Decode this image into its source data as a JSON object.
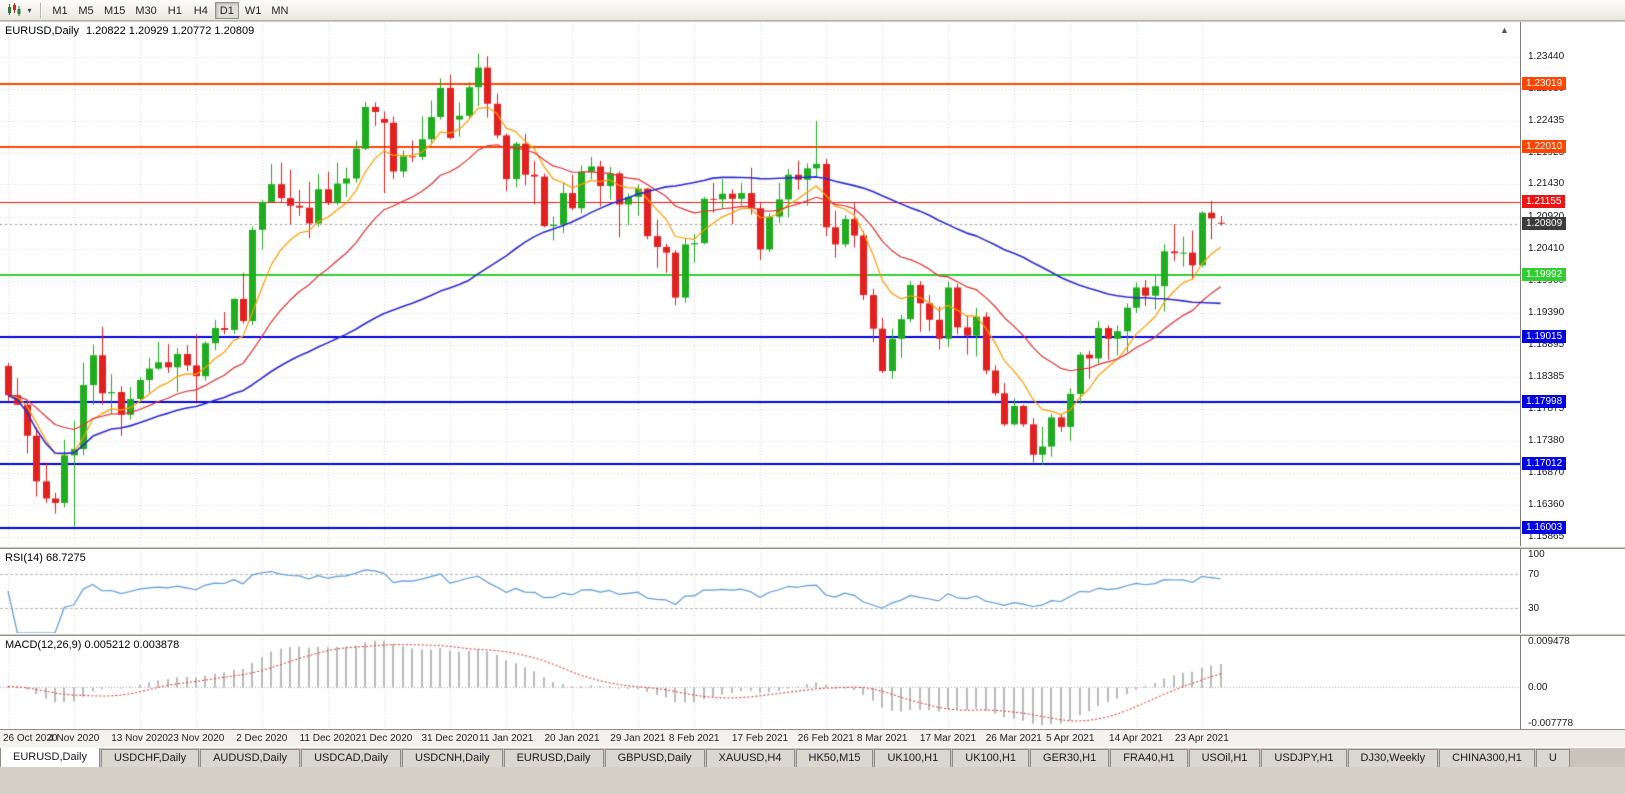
{
  "toolbar": {
    "chart_type_icon": "candlestick-chart-icon",
    "dropdown_icon": "chevron-down-icon",
    "timeframes": [
      {
        "label": "M1"
      },
      {
        "label": "M5"
      },
      {
        "label": "M15"
      },
      {
        "label": "M30"
      },
      {
        "label": "H1"
      },
      {
        "label": "H4"
      },
      {
        "label": "D1",
        "active": true
      },
      {
        "label": "W1"
      },
      {
        "label": "MN"
      }
    ]
  },
  "chart": {
    "symbol_period": "EURUSD,Daily",
    "ohlc_text": "1.20822 1.20929 1.20772 1.20809"
  },
  "chart_data": {
    "type": "candlestick",
    "symbol": "EURUSD",
    "period": "Daily",
    "colors": {
      "bull": "#1fad1f",
      "bear": "#e32020",
      "grid": "#d8d8d8",
      "background": "#ffffff"
    },
    "price_scale": {
      "max": 1.2399,
      "min": 1.1572
    },
    "price_axis": [
      "1.23440",
      "1.22930",
      "1.22435",
      "1.21925",
      "1.21430",
      "1.20920",
      "1.20410",
      "1.19900",
      "1.19390",
      "1.18895",
      "1.18385",
      "1.17875",
      "1.17380",
      "1.16870",
      "1.16360",
      "1.15865"
    ],
    "hlines": [
      {
        "price": 1.23019,
        "label": "1.23019",
        "color": "#ff4500",
        "width": 2
      },
      {
        "price": 1.2201,
        "label": "1.22010",
        "color": "#ff4500",
        "width": 2
      },
      {
        "price": 1.21155,
        "label": "1.21155",
        "color": "#ef1414",
        "width": 1
      },
      {
        "price": 1.19992,
        "label": "1.19992",
        "color": "#32cd32",
        "width": 2
      },
      {
        "price": 1.19015,
        "label": "1.19015",
        "color": "#0000e0",
        "width": 2
      },
      {
        "price": 1.17998,
        "label": "1.17998",
        "color": "#0000e0",
        "width": 2
      },
      {
        "price": 1.17012,
        "label": "1.17012",
        "color": "#0000e0",
        "width": 2
      },
      {
        "price": 1.16003,
        "label": "1.16003",
        "color": "#0000e0",
        "width": 2
      }
    ],
    "current_price": {
      "price": 1.20809,
      "label": "1.20809",
      "color": "#3c3c3c"
    },
    "moving_averages": [
      {
        "name": "fast-ma",
        "method": "ema",
        "period": 8,
        "color": "#ff9c00",
        "width": 1.2
      },
      {
        "name": "mid-ma",
        "method": "ema",
        "period": 20,
        "color": "#e03030",
        "width": 1.2
      },
      {
        "name": "slow-ma",
        "method": "sma",
        "period": 50,
        "color": "#2b2bd0",
        "width": 1.6
      }
    ],
    "date_labels": [
      {
        "label": "26 Oct 2020",
        "i": 0
      },
      {
        "label": "4 Nov 2020",
        "i": 7
      },
      {
        "label": "13 Nov 2020",
        "i": 14
      },
      {
        "label": "23 Nov 2020",
        "i": 20
      },
      {
        "label": "2 Dec 2020",
        "i": 27
      },
      {
        "label": "11 Dec 2020",
        "i": 34
      },
      {
        "label": "21 Dec 2020",
        "i": 40
      },
      {
        "label": "31 Dec 2020",
        "i": 47
      },
      {
        "label": "11 Jan 2021",
        "i": 53
      },
      {
        "label": "20 Jan 2021",
        "i": 60
      },
      {
        "label": "29 Jan 2021",
        "i": 67
      },
      {
        "label": "8 Feb 2021",
        "i": 73
      },
      {
        "label": "17 Feb 2021",
        "i": 80
      },
      {
        "label": "26 Feb 2021",
        "i": 87
      },
      {
        "label": "8 Mar 2021",
        "i": 93
      },
      {
        "label": "17 Mar 2021",
        "i": 100
      },
      {
        "label": "26 Mar 2021",
        "i": 107
      },
      {
        "label": "5 Apr 2021",
        "i": 113
      },
      {
        "label": "14 Apr 2021",
        "i": 120
      },
      {
        "label": "23 Apr 2021",
        "i": 127
      }
    ],
    "candles": [
      [
        1.1856,
        1.1861,
        1.18,
        1.181
      ],
      [
        1.181,
        1.1837,
        1.1794,
        1.1795
      ],
      [
        1.1795,
        1.18,
        1.1718,
        1.1746
      ],
      [
        1.1746,
        1.1759,
        1.165,
        1.1674
      ],
      [
        1.1674,
        1.1704,
        1.164,
        1.1647
      ],
      [
        1.1647,
        1.1656,
        1.1623,
        1.164
      ],
      [
        1.164,
        1.174,
        1.1633,
        1.1715
      ],
      [
        1.1715,
        1.177,
        1.1603,
        1.1725
      ],
      [
        1.1725,
        1.1861,
        1.1715,
        1.1826
      ],
      [
        1.1826,
        1.189,
        1.1795,
        1.1873
      ],
      [
        1.1873,
        1.1918,
        1.1795,
        1.1813
      ],
      [
        1.1813,
        1.1843,
        1.1781,
        1.1815
      ],
      [
        1.1815,
        1.1824,
        1.1746,
        1.1779
      ],
      [
        1.1779,
        1.1823,
        1.1772,
        1.1804
      ],
      [
        1.1804,
        1.1838,
        1.1799,
        1.1834
      ],
      [
        1.1834,
        1.1869,
        1.1814,
        1.1852
      ],
      [
        1.1852,
        1.1894,
        1.185,
        1.1862
      ],
      [
        1.1862,
        1.1891,
        1.1845,
        1.1854
      ],
      [
        1.1854,
        1.1884,
        1.1815,
        1.1875
      ],
      [
        1.1875,
        1.1889,
        1.1848,
        1.1857
      ],
      [
        1.1857,
        1.1906,
        1.18,
        1.184
      ],
      [
        1.184,
        1.1895,
        1.1833,
        1.1892
      ],
      [
        1.1892,
        1.1929,
        1.1881,
        1.1916
      ],
      [
        1.1916,
        1.1941,
        1.1906,
        1.1913
      ],
      [
        1.1913,
        1.1963,
        1.1907,
        1.1962
      ],
      [
        1.1962,
        1.2003,
        1.1923,
        1.1927
      ],
      [
        1.1927,
        1.2076,
        1.1921,
        1.2071
      ],
      [
        1.2071,
        1.2118,
        1.204,
        1.2115
      ],
      [
        1.2115,
        1.2175,
        1.2114,
        1.2143
      ],
      [
        1.2143,
        1.2177,
        1.2115,
        1.2121
      ],
      [
        1.2121,
        1.2166,
        1.2079,
        1.2109
      ],
      [
        1.2109,
        1.2134,
        1.2093,
        1.2106
      ],
      [
        1.2106,
        1.2147,
        1.2058,
        1.2081
      ],
      [
        1.2081,
        1.2159,
        1.2076,
        1.2135
      ],
      [
        1.2135,
        1.2163,
        1.211,
        1.2113
      ],
      [
        1.2113,
        1.2177,
        1.211,
        1.2144
      ],
      [
        1.2144,
        1.2169,
        1.2123,
        1.2152
      ],
      [
        1.2152,
        1.2212,
        1.2145,
        1.2199
      ],
      [
        1.2199,
        1.2273,
        1.2197,
        1.2265
      ],
      [
        1.2265,
        1.2272,
        1.2235,
        1.2257
      ],
      [
        1.2246,
        1.2258,
        1.2129,
        1.224
      ],
      [
        1.224,
        1.225,
        1.2151,
        1.2163
      ],
      [
        1.2163,
        1.2196,
        1.2154,
        1.2187
      ],
      [
        1.2187,
        1.2212,
        1.2178,
        1.2186
      ],
      [
        1.2186,
        1.225,
        1.2181,
        1.2214
      ],
      [
        1.2214,
        1.2275,
        1.2208,
        1.2249
      ],
      [
        1.2249,
        1.231,
        1.2245,
        1.2295
      ],
      [
        1.2295,
        1.2316,
        1.2214,
        1.2216
      ],
      [
        1.2245,
        1.2272,
        1.2218,
        1.2251
      ],
      [
        1.2251,
        1.2304,
        1.2247,
        1.2296
      ],
      [
        1.2296,
        1.2349,
        1.2266,
        1.2327
      ],
      [
        1.2327,
        1.2345,
        1.2248,
        1.227
      ],
      [
        1.227,
        1.2286,
        1.2215,
        1.222
      ],
      [
        1.222,
        1.2223,
        1.2132,
        1.2151
      ],
      [
        1.2151,
        1.221,
        1.2138,
        1.2207
      ],
      [
        1.2207,
        1.2223,
        1.2141,
        1.2158
      ],
      [
        1.2158,
        1.218,
        1.2111,
        1.2155
      ],
      [
        1.2155,
        1.216,
        1.2075,
        1.2077
      ],
      [
        1.2077,
        1.2092,
        1.2054,
        1.2079
      ],
      [
        1.2079,
        1.2145,
        1.2066,
        1.2129
      ],
      [
        1.2129,
        1.2158,
        1.2102,
        1.2105
      ],
      [
        1.2105,
        1.2173,
        1.2097,
        1.2163
      ],
      [
        1.2163,
        1.2186,
        1.2151,
        1.2171
      ],
      [
        1.2171,
        1.218,
        1.2108,
        1.214
      ],
      [
        1.214,
        1.217,
        1.2119,
        1.216
      ],
      [
        1.216,
        1.2163,
        1.2059,
        1.2111
      ],
      [
        1.2111,
        1.2128,
        1.2078,
        1.2123
      ],
      [
        1.2123,
        1.2142,
        1.2093,
        1.2136
      ],
      [
        1.2136,
        1.2137,
        1.2056,
        1.2061
      ],
      [
        1.2061,
        1.2087,
        1.2011,
        1.2044
      ],
      [
        1.2044,
        1.2049,
        1.2003,
        1.2035
      ],
      [
        1.2035,
        1.2039,
        1.1952,
        1.1964
      ],
      [
        1.1964,
        1.2058,
        1.1956,
        1.2048
      ],
      [
        1.2048,
        1.2064,
        1.2019,
        1.205
      ],
      [
        1.205,
        1.2123,
        1.2048,
        1.212
      ],
      [
        1.212,
        1.2145,
        1.2098,
        1.2119
      ],
      [
        1.2119,
        1.2151,
        1.2104,
        1.2128
      ],
      [
        1.2128,
        1.2135,
        1.208,
        1.212
      ],
      [
        1.212,
        1.2145,
        1.211,
        1.2129
      ],
      [
        1.2129,
        1.2169,
        1.2095,
        1.2105
      ],
      [
        1.2105,
        1.2113,
        1.2023,
        1.204
      ],
      [
        1.204,
        1.2097,
        1.2036,
        1.2092
      ],
      [
        1.2092,
        1.2145,
        1.2082,
        1.2119
      ],
      [
        1.2119,
        1.2167,
        1.2091,
        1.2158
      ],
      [
        1.2158,
        1.218,
        1.2134,
        1.215
      ],
      [
        1.215,
        1.2176,
        1.2109,
        1.2168
      ],
      [
        1.2168,
        1.2243,
        1.2155,
        1.2175
      ],
      [
        1.2175,
        1.2183,
        1.2061,
        1.2075
      ],
      [
        1.2075,
        1.2101,
        1.2027,
        1.2048
      ],
      [
        1.2048,
        1.2094,
        1.2043,
        1.2088
      ],
      [
        1.2088,
        1.2113,
        1.2043,
        1.2062
      ],
      [
        1.2062,
        1.2069,
        1.196,
        1.1968
      ],
      [
        1.1968,
        1.1978,
        1.1894,
        1.1915
      ],
      [
        1.1915,
        1.1932,
        1.1845,
        1.1848
      ],
      [
        1.1848,
        1.1915,
        1.1836,
        1.1899
      ],
      [
        1.1899,
        1.1937,
        1.1869,
        1.193
      ],
      [
        1.193,
        1.199,
        1.1925,
        1.1984
      ],
      [
        1.1984,
        1.199,
        1.191,
        1.1955
      ],
      [
        1.1955,
        1.1968,
        1.1911,
        1.1929
      ],
      [
        1.1929,
        1.195,
        1.1882,
        1.1899
      ],
      [
        1.1899,
        1.1989,
        1.1886,
        1.198
      ],
      [
        1.198,
        1.1986,
        1.1906,
        1.1917
      ],
      [
        1.1917,
        1.1936,
        1.1874,
        1.1904
      ],
      [
        1.1904,
        1.1948,
        1.1871,
        1.1934
      ],
      [
        1.1934,
        1.1941,
        1.1843,
        1.1849
      ],
      [
        1.1849,
        1.1857,
        1.1809,
        1.1813
      ],
      [
        1.1813,
        1.1829,
        1.1761,
        1.1764
      ],
      [
        1.1764,
        1.1805,
        1.1762,
        1.1793
      ],
      [
        1.1793,
        1.1795,
        1.176,
        1.1764
      ],
      [
        1.1764,
        1.1774,
        1.1704,
        1.1716
      ],
      [
        1.1716,
        1.176,
        1.17,
        1.1729
      ],
      [
        1.1729,
        1.1781,
        1.1713,
        1.1775
      ],
      [
        1.1775,
        1.178,
        1.1752,
        1.176
      ],
      [
        1.176,
        1.1821,
        1.1738,
        1.1812
      ],
      [
        1.1812,
        1.1878,
        1.1796,
        1.1874
      ],
      [
        1.1874,
        1.188,
        1.1836,
        1.1868
      ],
      [
        1.1868,
        1.1927,
        1.186,
        1.1916
      ],
      [
        1.1916,
        1.192,
        1.1866,
        1.1899
      ],
      [
        1.1899,
        1.192,
        1.1873,
        1.1911
      ],
      [
        1.1911,
        1.1955,
        1.1878,
        1.1948
      ],
      [
        1.1948,
        1.1988,
        1.194,
        1.198
      ],
      [
        1.198,
        1.1992,
        1.1951,
        1.1967
      ],
      [
        1.1967,
        1.1998,
        1.1945,
        1.1982
      ],
      [
        1.1982,
        1.2048,
        1.1942,
        1.2037
      ],
      [
        1.2037,
        1.208,
        1.2022,
        1.2034
      ],
      [
        1.2034,
        1.206,
        1.2013,
        1.2035
      ],
      [
        1.2035,
        1.207,
        1.1993,
        1.2015
      ],
      [
        1.2015,
        1.21,
        1.2012,
        1.2098
      ],
      [
        1.2098,
        1.2117,
        1.2056,
        1.2089
      ],
      [
        1.20822,
        1.20929,
        1.20772,
        1.20809
      ]
    ],
    "rsi": {
      "title": "RSI(14) 68.7275",
      "period": 14,
      "value": "68.7275",
      "levels": [
        "100",
        "70",
        "30"
      ],
      "level_values": [
        100,
        70,
        30
      ],
      "color": "#5e9bd6"
    },
    "macd": {
      "title": "MACD(12,26,9) 0.005212 0.003878",
      "fast": 12,
      "slow": 26,
      "signal": 9,
      "macd_value": "0.005212",
      "signal_value": "0.003878",
      "scale_max": 0.009478,
      "scale_min": -0.007778,
      "axis_labels": [
        {
          "label": "0.009478",
          "value": 0.009478
        },
        {
          "label": "0.00",
          "value": 0
        },
        {
          "label": "-0.007778",
          "value": -0.007778
        }
      ],
      "hist_color": "#b9b9b9",
      "signal_color": "#e03030"
    }
  },
  "tabs": [
    {
      "label": "EURUSD,Daily",
      "active": true
    },
    {
      "label": "USDCHF,Daily"
    },
    {
      "label": "AUDUSD,Daily"
    },
    {
      "label": "USDCAD,Daily"
    },
    {
      "label": "USDCNH,Daily"
    },
    {
      "label": "EURUSD,Daily"
    },
    {
      "label": "GBPUSD,Daily"
    },
    {
      "label": "XAUUSD,H4"
    },
    {
      "label": "HK50,M15"
    },
    {
      "label": "UK100,H1"
    },
    {
      "label": "UK100,H1"
    },
    {
      "label": "GER30,H1"
    },
    {
      "label": "FRA40,H1"
    },
    {
      "label": "USOil,H1"
    },
    {
      "label": "USDJPY,H1"
    },
    {
      "label": "DJ30,Weekly"
    },
    {
      "label": "CHINA300,H1"
    },
    {
      "label": "U"
    }
  ]
}
